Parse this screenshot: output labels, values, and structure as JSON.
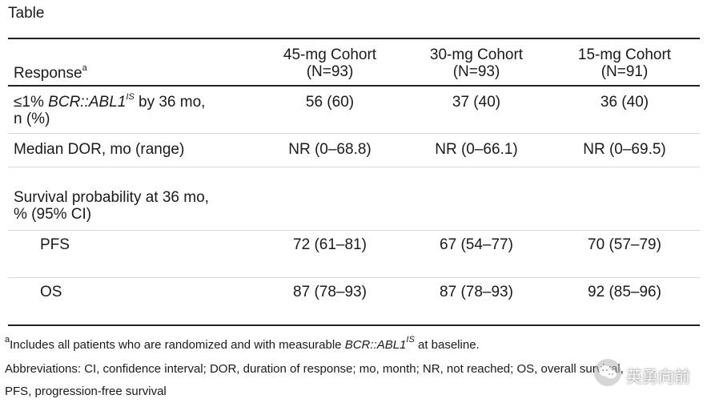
{
  "title": "Table",
  "header": {
    "response": "Response",
    "response_sup": "a",
    "cohorts": [
      {
        "name": "45-mg Cohort",
        "n": "(N=93)"
      },
      {
        "name": "30-mg Cohort",
        "n": "(N=93)"
      },
      {
        "name": "15-mg Cohort",
        "n": "(N=91)"
      }
    ]
  },
  "rows": {
    "r1": {
      "label_prefix": "≤1% ",
      "label_italic": "BCR::ABL1",
      "label_sup": "IS",
      "label_suffix": " by 36 mo,",
      "label_line2": "n (%)",
      "values": [
        "56 (60)",
        "37 (40)",
        "36 (40)"
      ]
    },
    "r2": {
      "label": "Median DOR, mo (range)",
      "values": [
        "NR (0–68.8)",
        "NR (0–66.1)",
        "NR (0–69.5)"
      ]
    },
    "r3": {
      "label_line1": "Survival probability at 36 mo,",
      "label_line2": "% (95% CI)"
    },
    "r4": {
      "label": "PFS",
      "values": [
        "72 (61–81)",
        "67 (54–77)",
        "70 (57–79)"
      ]
    },
    "r5": {
      "label": "OS",
      "values": [
        "87 (78–93)",
        "87 (78–93)",
        "92 (85–96)"
      ]
    }
  },
  "footnotes": {
    "a_sup": "a",
    "a_text1": "Includes all patients who are randomized and with measurable ",
    "a_italic": "BCR::ABL1",
    "a_sup2": "IS",
    "a_text2": " at baseline.",
    "abbrev_line1": "Abbreviations: CI, confidence interval; DOR, duration of response; mo, month; NR, not reached; OS, overall survival,",
    "abbrev_line2": "PFS, progression-free survival"
  },
  "watermark": {
    "text": "英勇向前",
    "icon": "wechat-icon"
  }
}
